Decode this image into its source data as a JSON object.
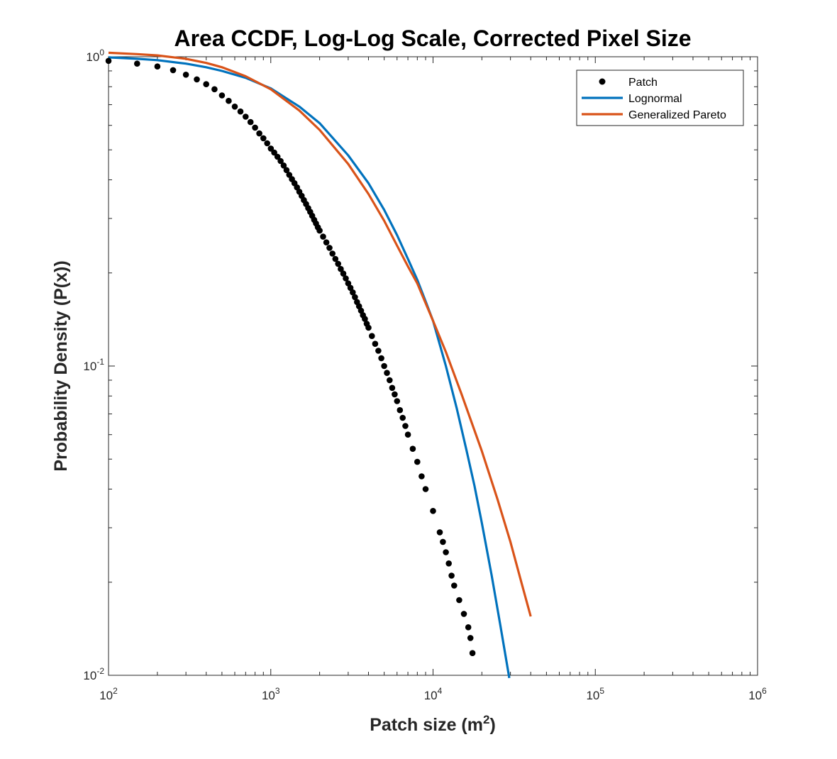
{
  "chart_data": {
    "type": "scatter",
    "title": "Area CCDF, Log-Log Scale, Corrected Pixel Size",
    "xlabel": {
      "base": "Patch size (m",
      "sup": "2",
      "tail": ")"
    },
    "ylabel": "Probability Density (P(x))",
    "xscale": "log",
    "yscale": "log",
    "xlim": [
      100,
      1000000
    ],
    "ylim": [
      0.01,
      1
    ],
    "grid": false,
    "legend_position": "top-right",
    "x_ticks": [
      {
        "value": 100,
        "base": "10",
        "exp": "2"
      },
      {
        "value": 1000,
        "base": "10",
        "exp": "3"
      },
      {
        "value": 10000,
        "base": "10",
        "exp": "4"
      },
      {
        "value": 100000,
        "base": "10",
        "exp": "5"
      },
      {
        "value": 1000000,
        "base": "10",
        "exp": "6"
      }
    ],
    "y_ticks": [
      {
        "value": 0.01,
        "base": "10",
        "exp": "-2"
      },
      {
        "value": 0.1,
        "base": "10",
        "exp": "-1"
      },
      {
        "value": 1,
        "base": "10",
        "exp": "0"
      }
    ],
    "series": [
      {
        "name": "Patch",
        "kind": "markers",
        "color": "#000000",
        "x": [
          100,
          150,
          200,
          250,
          300,
          350,
          400,
          450,
          500,
          550,
          600,
          650,
          700,
          750,
          800,
          850,
          900,
          950,
          1000,
          1050,
          1100,
          1150,
          1200,
          1250,
          1300,
          1350,
          1400,
          1450,
          1500,
          1550,
          1600,
          1650,
          1700,
          1750,
          1800,
          1850,
          1900,
          1950,
          2000,
          2100,
          2200,
          2300,
          2400,
          2500,
          2600,
          2700,
          2800,
          2900,
          3000,
          3100,
          3200,
          3300,
          3400,
          3500,
          3600,
          3700,
          3800,
          3900,
          4000,
          4200,
          4400,
          4600,
          4800,
          5000,
          5200,
          5400,
          5600,
          5800,
          6000,
          6250,
          6500,
          6750,
          7000,
          7500,
          8000,
          8500,
          9000,
          10000,
          11000,
          11500,
          12000,
          12500,
          13000,
          13500,
          14500,
          15500,
          16500,
          17000,
          17500
        ],
        "y": [
          0.97,
          0.95,
          0.93,
          0.905,
          0.875,
          0.845,
          0.815,
          0.785,
          0.75,
          0.72,
          0.69,
          0.665,
          0.64,
          0.615,
          0.59,
          0.565,
          0.545,
          0.525,
          0.505,
          0.49,
          0.475,
          0.46,
          0.445,
          0.43,
          0.415,
          0.402,
          0.39,
          0.378,
          0.366,
          0.355,
          0.344,
          0.334,
          0.324,
          0.315,
          0.306,
          0.297,
          0.289,
          0.281,
          0.274,
          0.262,
          0.251,
          0.241,
          0.231,
          0.222,
          0.214,
          0.206,
          0.199,
          0.192,
          0.185,
          0.179,
          0.173,
          0.167,
          0.161,
          0.156,
          0.151,
          0.146,
          0.142,
          0.137,
          0.133,
          0.125,
          0.118,
          0.112,
          0.106,
          0.1,
          0.095,
          0.09,
          0.085,
          0.081,
          0.077,
          0.072,
          0.068,
          0.064,
          0.06,
          0.054,
          0.049,
          0.044,
          0.04,
          0.034,
          0.029,
          0.027,
          0.025,
          0.023,
          0.021,
          0.0195,
          0.0175,
          0.0158,
          0.0143,
          0.0132,
          0.0118
        ]
      },
      {
        "name": "Lognormal",
        "kind": "line",
        "color": "#0072BD",
        "x": [
          100,
          150,
          200,
          300,
          400,
          500,
          700,
          1000,
          1500,
          2000,
          3000,
          4000,
          5000,
          6000,
          7000,
          8000,
          9000,
          10000,
          12000,
          14000,
          16000,
          18000,
          20000,
          23000,
          26000,
          29500
        ],
        "y": [
          0.995,
          0.985,
          0.975,
          0.95,
          0.925,
          0.9,
          0.855,
          0.79,
          0.69,
          0.61,
          0.48,
          0.39,
          0.32,
          0.265,
          0.222,
          0.19,
          0.162,
          0.14,
          0.1,
          0.073,
          0.054,
          0.041,
          0.031,
          0.021,
          0.0145,
          0.0098
        ]
      },
      {
        "name": "Generalized Pareto",
        "kind": "line",
        "color": "#D95319",
        "x": [
          100,
          150,
          200,
          300,
          400,
          500,
          700,
          1000,
          1500,
          2000,
          3000,
          4000,
          5000,
          6000,
          7000,
          8000,
          10000,
          12000,
          15000,
          20000,
          25000,
          30000,
          35000,
          40000
        ],
        "y": [
          1.03,
          1.02,
          1.01,
          0.985,
          0.955,
          0.925,
          0.865,
          0.785,
          0.67,
          0.58,
          0.45,
          0.36,
          0.295,
          0.245,
          0.21,
          0.185,
          0.14,
          0.111,
          0.081,
          0.053,
          0.037,
          0.027,
          0.02,
          0.0155
        ]
      }
    ]
  }
}
